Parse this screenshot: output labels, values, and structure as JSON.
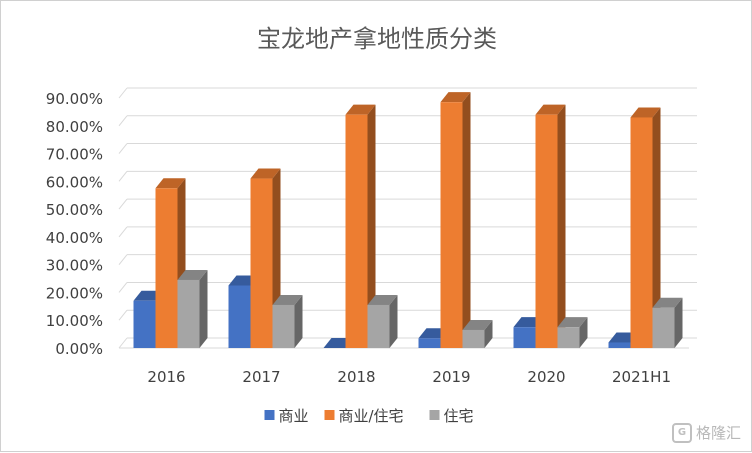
{
  "chart_data": {
    "type": "bar",
    "title": "宝龙地产拿地性质分类",
    "categories": [
      "2016",
      "2017",
      "2018",
      "2019",
      "2020",
      "2021H1"
    ],
    "series": [
      {
        "name": "商业",
        "color": "#4472C4",
        "values": [
          0.17,
          0.225,
          0.0,
          0.035,
          0.075,
          0.02
        ]
      },
      {
        "name": "商业/住宅",
        "color": "#ED7D31",
        "values": [
          0.575,
          0.61,
          0.84,
          0.885,
          0.84,
          0.83
        ]
      },
      {
        "name": "住宅",
        "color": "#A5A5A5",
        "values": [
          0.245,
          0.155,
          0.155,
          0.065,
          0.075,
          0.145
        ]
      }
    ],
    "ylim": [
      0,
      0.9
    ],
    "yticks": [
      "0.00%",
      "10.00%",
      "20.00%",
      "30.00%",
      "40.00%",
      "50.00%",
      "60.00%",
      "70.00%",
      "80.00%",
      "90.00%"
    ],
    "grid": true,
    "legend": "bottom"
  },
  "watermark": {
    "text": "格隆汇",
    "icon": "G"
  }
}
